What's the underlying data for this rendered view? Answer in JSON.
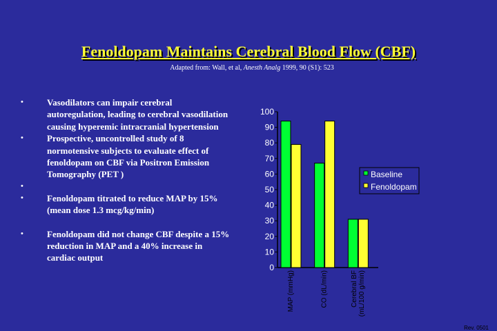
{
  "slide": {
    "title": "Fenoldopam Maintains Cerebral Blood Flow (CBF)",
    "subtitle_prefix": "Adapted from: Wall, et al, ",
    "subtitle_journal": "Anesth Analg",
    "subtitle_suffix": " 1999, 90 (S1): 523",
    "bullet_char": "•",
    "bullets": [
      "Vasodilators can impair cerebral autoregulation, leading to cerebral vasodilation causing hyperemic intracranial hypertension",
      "Prospective, uncontrolled study of 8 normotensive subjects to evaluate effect of fenoldopam on CBF via Positron Emission Tomography (PET )",
      "",
      "Fenoldopam titrated to reduce MAP by 15% (mean dose 1.3 mcg/kg/min)",
      "",
      "Fenoldopam did not change CBF despite a 15% reduction in MAP and a 40% increase in cardiac output"
    ],
    "rev": "Rev. 0501"
  },
  "chart_data": {
    "type": "bar",
    "categories": [
      "MAP (mmHg)",
      "CO (dL/min)",
      "Cerebral BF|(mL/100 g/min)"
    ],
    "series": [
      {
        "name": "Baseline",
        "color": "#00ff33",
        "values": [
          94,
          67,
          31
        ]
      },
      {
        "name": "Fenoldopam",
        "color": "#ffff33",
        "values": [
          79,
          94,
          31
        ]
      }
    ],
    "ylim": [
      0,
      100
    ],
    "yticks": [
      "0",
      "10",
      "20",
      "30",
      "40",
      "50",
      "60",
      "70",
      "80",
      "90",
      "100"
    ],
    "legend_position": "right",
    "grid": false
  }
}
